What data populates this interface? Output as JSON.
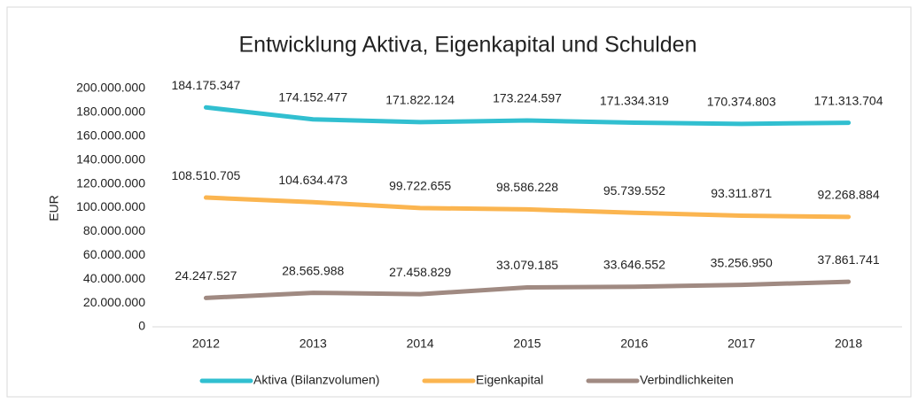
{
  "chart_data": {
    "type": "line",
    "title": "Entwicklung Aktiva, Eigenkapital und Schulden",
    "y_label": "EUR",
    "categories": [
      "2012",
      "2013",
      "2014",
      "2015",
      "2016",
      "2017",
      "2018"
    ],
    "series": [
      {
        "name": "Aktiva (Bilanzvolumen)",
        "color": "#31bfd0",
        "values": [
          184175347,
          174152477,
          171822124,
          173224597,
          171334319,
          170374803,
          171313704
        ],
        "value_labels": [
          "184.175.347",
          "174.152.477",
          "171.822.124",
          "173.224.597",
          "171.334.319",
          "170.374.803",
          "171.313.704"
        ]
      },
      {
        "name": "Eigenkapital",
        "color": "#fbb550",
        "values": [
          108510705,
          104634473,
          99722655,
          98586228,
          95739552,
          93311871,
          92268884
        ],
        "value_labels": [
          "108.510.705",
          "104.634.473",
          "99.722.655",
          "98.586.228",
          "95.739.552",
          "93.311.871",
          "92.268.884"
        ]
      },
      {
        "name": "Verbindlichkeiten",
        "color": "#a08a82",
        "values": [
          24247527,
          28565988,
          27458829,
          33079185,
          33646552,
          35256950,
          37861741
        ],
        "value_labels": [
          "24.247.527",
          "28.565.988",
          "27.458.829",
          "33.079.185",
          "33.646.552",
          "35.256.950",
          "37.861.741"
        ]
      }
    ],
    "ylim": [
      0,
      200000000
    ],
    "yticks": [
      0,
      {
        "value": 20000000,
        "label": "20.000.000"
      },
      {
        "value": 40000000,
        "label": "40.000.000"
      },
      {
        "value": 60000000,
        "label": "60.000.000"
      },
      {
        "value": 80000000,
        "label": "80.000.000"
      },
      {
        "value": 100000000,
        "label": "100.000.000"
      },
      {
        "value": 120000000,
        "label": "120.000.000"
      },
      {
        "value": 140000000,
        "label": "140.000.000"
      },
      {
        "value": 160000000,
        "label": "160.000.000"
      },
      {
        "value": 180000000,
        "label": "180.000.000"
      },
      {
        "value": 200000000,
        "label": "200.000.000"
      }
    ],
    "grid": false,
    "legend": "bottom"
  }
}
